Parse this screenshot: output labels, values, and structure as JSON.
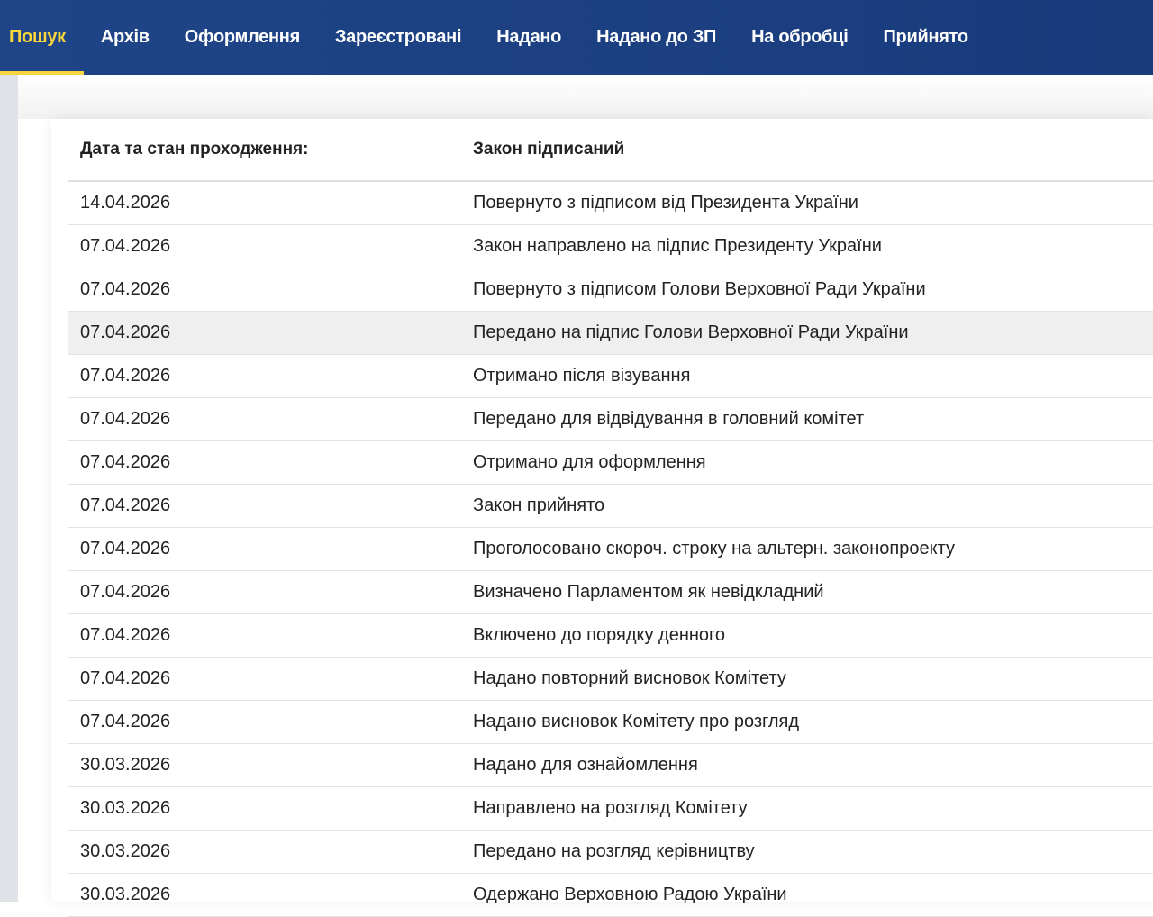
{
  "nav": {
    "items": [
      "Пошук",
      "Архів",
      "Оформлення",
      "Зареєстровані",
      "Надано",
      "Надано до ЗП",
      "На обробці",
      "Прийнято"
    ],
    "active_index": 0,
    "colors": {
      "background": "#1c4082",
      "active": "#f7d53c"
    }
  },
  "table": {
    "headers": [
      "Дата та стан проходження:",
      "Закон підписаний"
    ],
    "highlighted_row": 3,
    "rows": [
      [
        "14.04.2026",
        "Повернуто з підписом від Президента України"
      ],
      [
        "07.04.2026",
        "Закон направлено на підпис Президенту України"
      ],
      [
        "07.04.2026",
        "Повернуто з підписом Голови Верховної Ради України"
      ],
      [
        "07.04.2026",
        "Передано на підпис Голови Верховної Ради України"
      ],
      [
        "07.04.2026",
        "Отримано після візування"
      ],
      [
        "07.04.2026",
        "Передано для відвідування в головний комітет"
      ],
      [
        "07.04.2026",
        "Отримано для оформлення"
      ],
      [
        "07.04.2026",
        "Закон прийнято"
      ],
      [
        "07.04.2026",
        "Проголосовано скороч. строку на альтерн. законопроекту"
      ],
      [
        "07.04.2026",
        "Визначено Парламентом як невідкладний"
      ],
      [
        "07.04.2026",
        "Включено до порядку денного"
      ],
      [
        "07.04.2026",
        "Надано повторний висновок Комітету"
      ],
      [
        "07.04.2026",
        "Надано висновок Комітету про розгляд"
      ],
      [
        "30.03.2026",
        "Надано для ознайомлення"
      ],
      [
        "30.03.2026",
        "Направлено на розгляд Комітету"
      ],
      [
        "30.03.2026",
        "Передано на розгляд керівництву"
      ],
      [
        "30.03.2026",
        "Одержано Верховною Радою України"
      ]
    ]
  }
}
